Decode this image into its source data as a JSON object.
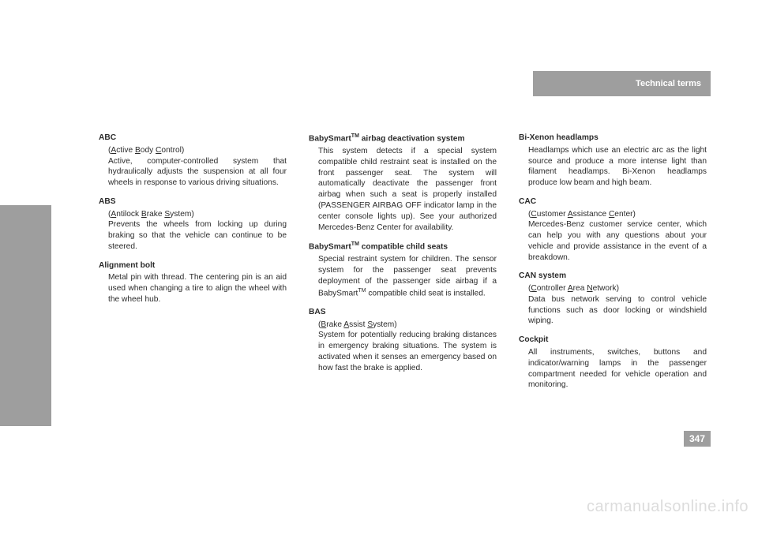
{
  "header": {
    "title": "Technical terms"
  },
  "page_number": "347",
  "watermark": "carmanualsonline.info",
  "col1": {
    "t1": "ABC",
    "d1_pre": "(",
    "d1_a": "A",
    "d1_b": "ctive ",
    "d1_c": "B",
    "d1_d": "ody ",
    "d1_e": "C",
    "d1_f": "ontrol)",
    "d1_body": "Active, computer-controlled system that hydraulically adjusts the suspen­sion at all four wheels in response to various driving situations.",
    "t2": "ABS",
    "d2_pre": "(",
    "d2_a": "A",
    "d2_b": "ntilock ",
    "d2_c": "B",
    "d2_d": "rake ",
    "d2_e": "S",
    "d2_f": "ystem)",
    "d2_body": "Prevents the wheels from locking up during braking so that the vehicle can continue to be steered.",
    "t3": "Alignment bolt",
    "d3_body": "Metal pin with thread. The centering pin is an aid used when changing a tire to align the wheel with the wheel hub."
  },
  "col2": {
    "t1a": "BabySmart",
    "t1b": "TM",
    "t1c": " airbag deactivation system",
    "d1_body": "This system detects if a special system compatible child restraint seat is in­stalled on the front passenger seat. The system will automatically deactivate the passenger front airbag when such a seat is properly installed (PASSENGER AIRBAG OFF indicator lamp in the cen­ter console lights up). See your autho­rized Mercedes-Benz Center for availability.",
    "t2a": "BabySmart",
    "t2b": "TM",
    "t2c": " compatible child seats",
    "d2_a": "Special restraint system for children. The sensor system for the passenger seat prevents deployment of the pas­senger side airbag if a BabySmart",
    "d2_tm": "TM",
    "d2_b": " compatible child seat is installed.",
    "t3": "BAS",
    "d3_pre": "(",
    "d3_a": "B",
    "d3_b": "rake ",
    "d3_c": "A",
    "d3_d": "ssist ",
    "d3_e": "S",
    "d3_f": "ystem)",
    "d3_body": "System for potentially reducing braking distances in emergency braking situa­tions. The system is activated when it senses an emergency based on how fast the brake is applied."
  },
  "col3": {
    "t1": "Bi-Xenon headlamps",
    "d1_body": "Headlamps which use an electric arc as the light source and produce a more in­tense light than filament headlamps. Bi-Xenon headlamps produce low beam and high beam.",
    "t2": "CAC",
    "d2_pre": "(",
    "d2_a": "C",
    "d2_b": "ustomer ",
    "d2_c": "A",
    "d2_d": "ssistance ",
    "d2_e": "C",
    "d2_f": "enter)",
    "d2_body": "Mercedes-Benz customer service cen­ter, which can help you with any ques­tions about your vehicle and provide assistance in the event of a break­down.",
    "t3": "CAN system",
    "d3_pre": "(",
    "d3_a": "C",
    "d3_b": "ontroller ",
    "d3_c": "A",
    "d3_d": "rea ",
    "d3_e": "N",
    "d3_f": "etwork)",
    "d3_body": "Data bus network serving to control ve­hicle functions such as door locking or windshield wiping.",
    "t4": "Cockpit",
    "d4_body": "All instruments, switches, buttons and indicator/warning lamps in the passen­ger compartment needed for vehicle operation and monitoring."
  }
}
